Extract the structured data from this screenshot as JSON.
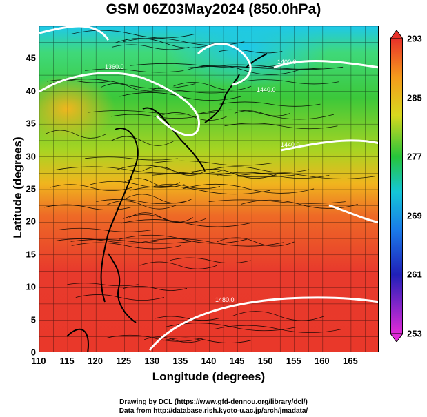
{
  "title": "GSM 06Z03May2024 (850.0hPa)",
  "map": {
    "xlabel": "Longitude (degrees)",
    "ylabel": "Latitude  (degrees)",
    "x_range": [
      110,
      170
    ],
    "y_range": [
      0,
      50
    ],
    "x_ticks": [
      "110",
      "115",
      "120",
      "125",
      "130",
      "135",
      "140",
      "145",
      "150",
      "155",
      "160",
      "165"
    ],
    "y_ticks": [
      "0",
      "5",
      "10",
      "15",
      "20",
      "25",
      "30",
      "35",
      "40",
      "45"
    ],
    "contour_labels": [
      "1360.0",
      "1400.0",
      "1440.0",
      "1440.0",
      "1480.0"
    ],
    "colors": {
      "warm": "#e8322a",
      "mid": "#f5a21c",
      "cool": "#27c43a",
      "cold": "#16c8e6"
    }
  },
  "colorbar": {
    "labels": [
      "293",
      "285",
      "277",
      "269",
      "261",
      "253"
    ],
    "range": [
      253,
      293
    ]
  },
  "credits": [
    "Drawing by DCL (https://www.gfd-dennou.org/library/dcl/)",
    "Data from http://database.rish.kyoto-u.ac.jp/arch/jmadata/"
  ]
}
